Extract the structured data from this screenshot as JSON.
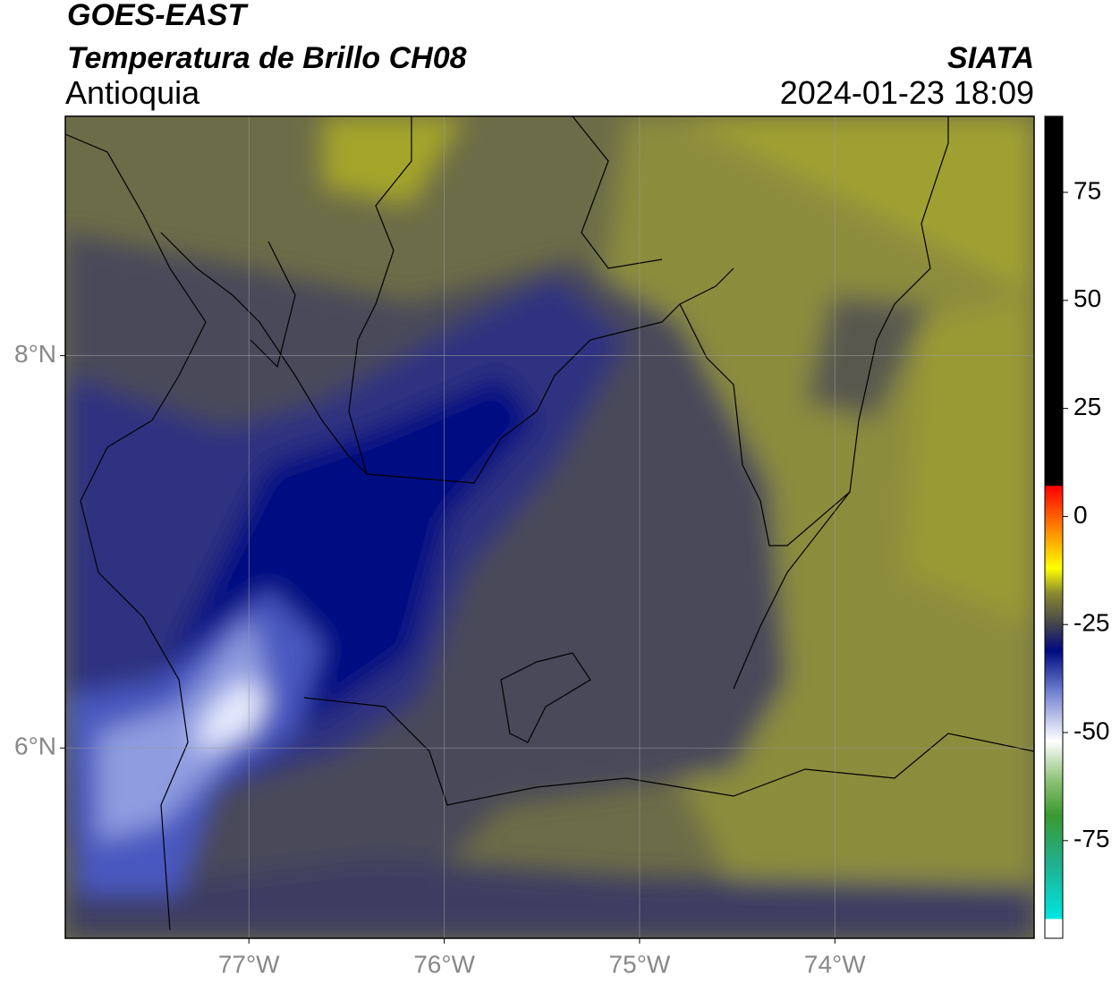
{
  "header": {
    "title": "GOES-EAST",
    "subtitle": "Temperatura de Brillo CH08",
    "region": "Antioquia",
    "source": "SIATA",
    "datetime": "2024-01-23 18:09"
  },
  "map": {
    "xlim": [
      -77.94,
      -72.98
    ],
    "ylim": [
      5.03,
      9.22
    ],
    "xticks": [
      {
        "value": -77,
        "label": "77°W"
      },
      {
        "value": -76,
        "label": "76°W"
      },
      {
        "value": -75,
        "label": "75°W"
      },
      {
        "value": -74,
        "label": "74°W"
      }
    ],
    "yticks": [
      {
        "value": 8,
        "label": "8°N"
      },
      {
        "value": 6,
        "label": "6°N"
      }
    ]
  },
  "colorbar": {
    "lim": [
      -97.6,
      92.6
    ],
    "ticks": [
      75,
      50,
      25,
      0,
      -25,
      -50,
      -75
    ]
  }
}
